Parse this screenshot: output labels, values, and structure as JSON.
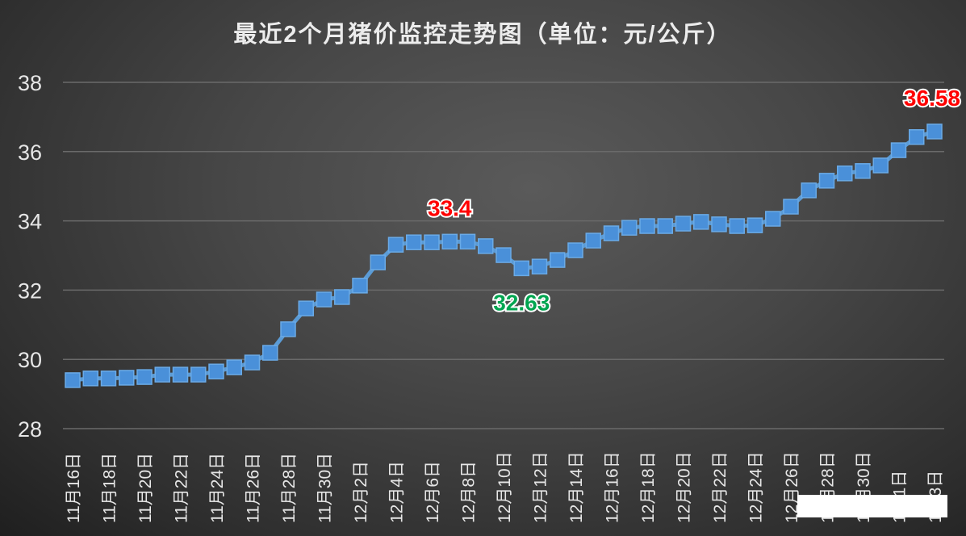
{
  "chart_data": {
    "type": "line",
    "title": "最近2个月猪价监控走势图（单位：元/公斤）",
    "xlabel": "",
    "ylabel": "",
    "ylim": [
      28,
      38
    ],
    "yticks": [
      28,
      30,
      32,
      34,
      36,
      38
    ],
    "grid": true,
    "x": [
      "11月16日",
      "11月17日",
      "11月18日",
      "11月19日",
      "11月20日",
      "11月21日",
      "11月22日",
      "11月23日",
      "11月24日",
      "11月25日",
      "11月26日",
      "11月27日",
      "11月28日",
      "11月29日",
      "11月30日",
      "12月1日",
      "12月2日",
      "12月3日",
      "12月4日",
      "12月5日",
      "12月6日",
      "12月7日",
      "12月8日",
      "12月9日",
      "12月10日",
      "12月11日",
      "12月12日",
      "12月13日",
      "12月14日",
      "12月15日",
      "12月16日",
      "12月17日",
      "12月18日",
      "12月19日",
      "12月20日",
      "12月21日",
      "12月22日",
      "12月23日",
      "12月24日",
      "12月25日",
      "12月26日",
      "12月27日",
      "12月28日",
      "12月29日",
      "12月30日",
      "12月31日",
      "1月1日",
      "1月2日",
      "1月3日"
    ],
    "tick_labels": [
      "11月16日",
      "11月18日",
      "11月20日",
      "11月22日",
      "11月24日",
      "11月26日",
      "11月28日",
      "11月30日",
      "12月2日",
      "12月4日",
      "12月6日",
      "12月8日",
      "12月10日",
      "12月12日",
      "12月14日",
      "12月16日",
      "12月18日",
      "12月20日",
      "12月22日",
      "12月24日",
      "12月26日",
      "12月28日",
      "12月30日",
      "1月1日",
      "1月3日"
    ],
    "series": [
      {
        "name": "猪价",
        "color": "#5b9bd5",
        "values": [
          29.4,
          29.45,
          29.45,
          29.47,
          29.49,
          29.56,
          29.56,
          29.56,
          29.65,
          29.77,
          29.91,
          30.19,
          30.87,
          31.47,
          31.73,
          31.8,
          32.13,
          32.8,
          33.31,
          33.38,
          33.38,
          33.4,
          33.4,
          33.27,
          33.01,
          32.63,
          32.68,
          32.87,
          33.15,
          33.43,
          33.64,
          33.8,
          33.85,
          33.85,
          33.92,
          33.97,
          33.9,
          33.85,
          33.87,
          34.06,
          34.41,
          34.88,
          35.16,
          35.37,
          35.44,
          35.6,
          36.04,
          36.42,
          36.58
        ]
      }
    ],
    "annotations": [
      {
        "text": "33.4",
        "index": 21,
        "value": 33.4,
        "color": "#ff0000",
        "position": "above"
      },
      {
        "text": "32.63",
        "index": 25,
        "value": 32.63,
        "color": "#00a550",
        "position": "below"
      },
      {
        "text": "36.58",
        "index": 48,
        "value": 36.58,
        "color": "#ff0000",
        "position": "above"
      }
    ]
  }
}
